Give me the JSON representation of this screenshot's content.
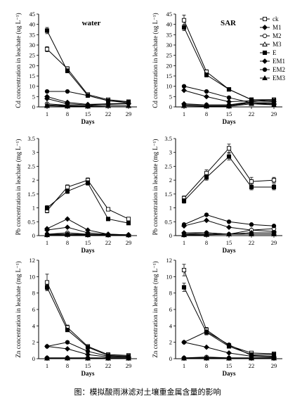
{
  "caption": "图：模拟酸雨淋滤对土壤重金属含量的影响",
  "legend": [
    {
      "key": "ck",
      "marker": "square-open"
    },
    {
      "key": "M1",
      "marker": "diamond"
    },
    {
      "key": "M2",
      "marker": "circle-open"
    },
    {
      "key": "M3",
      "marker": "triangle-open"
    },
    {
      "key": "E",
      "marker": "square"
    },
    {
      "key": "EM1",
      "marker": "diamond"
    },
    {
      "key": "EM2",
      "marker": "circle"
    },
    {
      "key": "EM3",
      "marker": "triangle"
    }
  ],
  "chart_data": [
    {
      "type": "line",
      "title": "water",
      "xlabel": "Days",
      "ylabel": "Cd concentration in leachate (ug L⁻¹)",
      "ylim": [
        0,
        45
      ],
      "yticks": [
        0,
        5,
        10,
        15,
        20,
        25,
        30,
        35,
        40,
        45
      ],
      "x": [
        1,
        8,
        15,
        22,
        29
      ],
      "series": [
        {
          "name": "ck",
          "values": [
            28,
            18.5,
            6,
            3.5,
            2.5
          ],
          "err": [
            1.2,
            1,
            0.5,
            0.3,
            0.3
          ]
        },
        {
          "name": "M1",
          "values": [
            5,
            2.2,
            1.2,
            1.5,
            1.5
          ]
        },
        {
          "name": "M2",
          "values": [
            1.5,
            0.8,
            0.5,
            1.5,
            1.8
          ]
        },
        {
          "name": "M3",
          "values": [
            1,
            0.5,
            0.3,
            0.5,
            0.5
          ]
        },
        {
          "name": "E",
          "values": [
            37,
            17.5,
            5.5,
            3,
            2.5
          ],
          "err": [
            1.5,
            1,
            0.5,
            0.3,
            0.3
          ]
        },
        {
          "name": "EM1",
          "values": [
            4,
            1.5,
            1,
            1.2,
            1.5
          ]
        },
        {
          "name": "EM2",
          "values": [
            7.5,
            7.5,
            5.5,
            3,
            2
          ]
        },
        {
          "name": "EM3",
          "values": [
            0.5,
            0.3,
            0.3,
            0.5,
            0.5
          ]
        }
      ]
    },
    {
      "type": "line",
      "title": "SAR",
      "xlabel": "Days",
      "ylabel": "Cd concentration in leachate (ug L⁻¹)",
      "ylim": [
        0,
        45
      ],
      "yticks": [
        0,
        5,
        10,
        15,
        20,
        25,
        30,
        35,
        40,
        45
      ],
      "x": [
        1,
        8,
        15,
        22,
        29
      ],
      "series": [
        {
          "name": "ck",
          "values": [
            42,
            17,
            8.5,
            3.5,
            3.5
          ],
          "err": [
            2.5,
            1,
            0.5,
            0.4,
            0.4
          ]
        },
        {
          "name": "M1",
          "values": [
            8,
            5,
            2.5,
            3,
            2.5
          ]
        },
        {
          "name": "M2",
          "values": [
            1,
            1,
            1,
            2.5,
            3.5
          ]
        },
        {
          "name": "M3",
          "values": [
            0.5,
            0.5,
            0.5,
            2,
            2
          ]
        },
        {
          "name": "E",
          "values": [
            38.5,
            15.5,
            8.5,
            3.5,
            3
          ],
          "err": [
            1.5,
            1,
            0.5,
            0.4,
            0.4
          ]
        },
        {
          "name": "EM1",
          "values": [
            1.5,
            1,
            1,
            2,
            1.5
          ]
        },
        {
          "name": "EM2",
          "values": [
            10,
            7.5,
            4.5,
            2,
            1
          ]
        },
        {
          "name": "EM3",
          "values": [
            0.5,
            0.3,
            0.3,
            1.5,
            1
          ]
        }
      ]
    },
    {
      "type": "line",
      "title": "",
      "xlabel": "Days",
      "ylabel": "Pb concentration in leachate (mg L⁻¹)",
      "ylim": [
        0,
        3.5
      ],
      "yticks": [
        0,
        0.5,
        1,
        1.5,
        2,
        2.5,
        3,
        3.5
      ],
      "x": [
        1,
        8,
        15,
        22,
        29
      ],
      "series": [
        {
          "name": "ck",
          "values": [
            0.9,
            1.75,
            2,
            0.95,
            0.6
          ],
          "err": [
            0.08,
            0.08,
            0.08,
            0.05,
            0.05
          ]
        },
        {
          "name": "M1",
          "values": [
            0.25,
            0.6,
            0.2,
            0.05,
            0.03
          ]
        },
        {
          "name": "M2",
          "values": [
            0.05,
            0.1,
            0.05,
            0.03,
            0.02
          ]
        },
        {
          "name": "M3",
          "values": [
            0.03,
            0.05,
            0.03,
            0.02,
            0.02
          ]
        },
        {
          "name": "E",
          "values": [
            1,
            1.6,
            1.9,
            0.6,
            0.45
          ],
          "err": [
            0.08,
            0.08,
            0.08,
            0.05,
            0.05
          ]
        },
        {
          "name": "EM1",
          "values": [
            0.2,
            0.3,
            0.1,
            0.05,
            0.03
          ]
        },
        {
          "name": "EM2",
          "values": [
            0.05,
            0.05,
            0.05,
            0.03,
            0.02
          ]
        },
        {
          "name": "EM3",
          "values": [
            0.02,
            0.03,
            0.02,
            0.02,
            0.02
          ]
        }
      ]
    },
    {
      "type": "line",
      "title": "",
      "xlabel": "Days",
      "ylabel": "Pb concentration in leachate (mg L⁻¹)",
      "ylim": [
        0,
        3.5
      ],
      "yticks": [
        0,
        0.5,
        1,
        1.5,
        2,
        2.5,
        3,
        3.5
      ],
      "x": [
        1,
        8,
        15,
        22,
        29
      ],
      "series": [
        {
          "name": "ck",
          "values": [
            1.35,
            2.25,
            3.15,
            1.95,
            2
          ],
          "err": [
            0.08,
            0.12,
            0.15,
            0.15,
            0.1
          ]
        },
        {
          "name": "M1",
          "values": [
            0.35,
            0.55,
            0.3,
            0.2,
            0.15
          ]
        },
        {
          "name": "M2",
          "values": [
            0.05,
            0.1,
            0.05,
            0.2,
            0.25
          ]
        },
        {
          "name": "M3",
          "values": [
            0.03,
            0.05,
            0.05,
            0.1,
            0.1
          ]
        },
        {
          "name": "E",
          "values": [
            1.25,
            2.1,
            2.85,
            1.75,
            1.75
          ],
          "err": [
            0.08,
            0.1,
            0.12,
            0.1,
            0.1
          ]
        },
        {
          "name": "EM1",
          "values": [
            0.1,
            0.1,
            0.05,
            0.1,
            0.1
          ]
        },
        {
          "name": "EM2",
          "values": [
            0.4,
            0.75,
            0.5,
            0.4,
            0.35
          ]
        },
        {
          "name": "EM3",
          "values": [
            0.02,
            0.03,
            0.05,
            0.05,
            0.05
          ]
        }
      ]
    },
    {
      "type": "line",
      "title": "",
      "xlabel": "Days",
      "ylabel": "Zn concentration in leachate (mg L⁻¹)",
      "ylim": [
        0,
        12
      ],
      "yticks": [
        0,
        2,
        4,
        6,
        8,
        10,
        12
      ],
      "x": [
        1,
        8,
        15,
        22,
        29
      ],
      "series": [
        {
          "name": "ck",
          "values": [
            9.3,
            3.8,
            1.5,
            0.5,
            0.4
          ],
          "err": [
            1,
            0.3,
            0.1,
            0.05,
            0.05
          ]
        },
        {
          "name": "M1",
          "values": [
            1.5,
            1.2,
            0.5,
            0.2,
            0.2
          ]
        },
        {
          "name": "M2",
          "values": [
            0.1,
            0.1,
            0.1,
            0.1,
            0.1
          ]
        },
        {
          "name": "M3",
          "values": [
            0.05,
            0.1,
            0.05,
            0.05,
            0.05
          ]
        },
        {
          "name": "E",
          "values": [
            8.7,
            3.5,
            1.4,
            0.4,
            0.3
          ],
          "err": [
            0.3,
            0.2,
            0.1,
            0.05,
            0.05
          ]
        },
        {
          "name": "EM1",
          "values": [
            0.1,
            0.1,
            0.1,
            0.1,
            0.1
          ]
        },
        {
          "name": "EM2",
          "values": [
            1.5,
            2,
            0.9,
            0.3,
            0.2
          ]
        },
        {
          "name": "EM3",
          "values": [
            0.05,
            0.05,
            0.05,
            0.05,
            0.05
          ]
        }
      ]
    },
    {
      "type": "line",
      "title": "",
      "xlabel": "Days",
      "ylabel": "Zn concentration in leachate (mg L⁻¹)",
      "ylim": [
        0,
        12
      ],
      "yticks": [
        0,
        2,
        4,
        6,
        8,
        10,
        12
      ],
      "x": [
        1,
        8,
        15,
        22,
        29
      ],
      "series": [
        {
          "name": "ck",
          "values": [
            10.8,
            3.5,
            1.6,
            0.7,
            0.6
          ],
          "err": [
            0.7,
            0.3,
            0.1,
            0.1,
            0.1
          ]
        },
        {
          "name": "M1",
          "values": [
            2,
            1.4,
            0.7,
            0.3,
            0.2
          ]
        },
        {
          "name": "M2",
          "values": [
            0.1,
            0.2,
            0.1,
            0.1,
            0.1
          ]
        },
        {
          "name": "M3",
          "values": [
            0.05,
            0.1,
            0.05,
            0.1,
            0.1
          ]
        },
        {
          "name": "E",
          "values": [
            8.7,
            3.2,
            1.5,
            0.5,
            0.5
          ],
          "err": [
            0.5,
            0.3,
            0.1,
            0.1,
            0.1
          ]
        },
        {
          "name": "EM1",
          "values": [
            0.1,
            0.1,
            0.1,
            0.1,
            0.1
          ]
        },
        {
          "name": "EM2",
          "values": [
            2,
            3.3,
            1.7,
            0.4,
            0.3
          ]
        },
        {
          "name": "EM3",
          "values": [
            0.05,
            0.05,
            0.05,
            0.05,
            0.05
          ]
        }
      ]
    }
  ]
}
